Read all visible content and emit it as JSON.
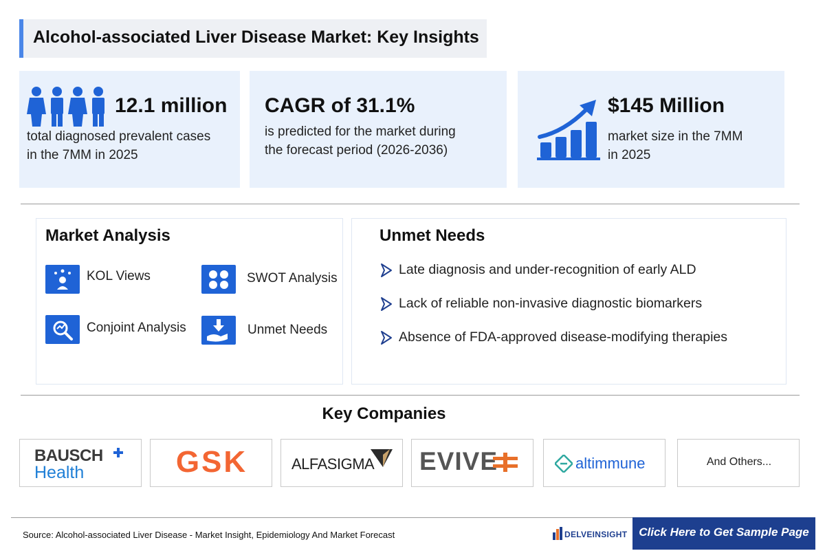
{
  "header": {
    "title": "Alcohol-associated Liver Disease Market: Key Insights"
  },
  "stats": [
    {
      "value": "12.1 million",
      "line1": "total diagnosed prevalent cases",
      "line2": "in the 7MM in 2025"
    },
    {
      "value": "CAGR of 31.1%",
      "line1": "is predicted for the market during",
      "line2": "the forecast period (2026-2036)"
    },
    {
      "value": "$145 Million",
      "line1": "market size in the 7MM",
      "line2": "in 2025"
    }
  ],
  "market_analysis": {
    "title": "Market Analysis",
    "items": [
      "KOL Views",
      "SWOT Analysis",
      "Conjoint Analysis",
      "Unmet Needs"
    ]
  },
  "unmet_needs": {
    "title": "Unmet Needs",
    "items": [
      "Late diagnosis and under-recognition of early ALD",
      "Lack of reliable non-invasive diagnostic biomarkers",
      "Absence of FDA-approved disease-modifying therapies"
    ]
  },
  "key_companies": {
    "title": "Key Companies",
    "logos": [
      "BAUSCH",
      "Health",
      "GSK",
      "ALFASIGMA",
      "EVIVE",
      "altimmune"
    ],
    "others": "And Others..."
  },
  "footer": {
    "source": "Source: Alcohol-associated Liver Disease - Market Insight, Epidemiology And Market Forecast",
    "brand": "DELVEINSIGHT",
    "cta": "Click Here to Get Sample Page"
  },
  "colors": {
    "accent": "#1f63d6",
    "card_bg": "#e9f1fc",
    "cta_bg": "#1d3f8f",
    "gsk": "#f36633",
    "evive": "#e8702a"
  },
  "icons": [
    "people-icon",
    "growth-chart-icon",
    "kol-icon",
    "swot-icon",
    "conjoint-icon",
    "unmet-needs-icon",
    "chevron-right-icon"
  ]
}
